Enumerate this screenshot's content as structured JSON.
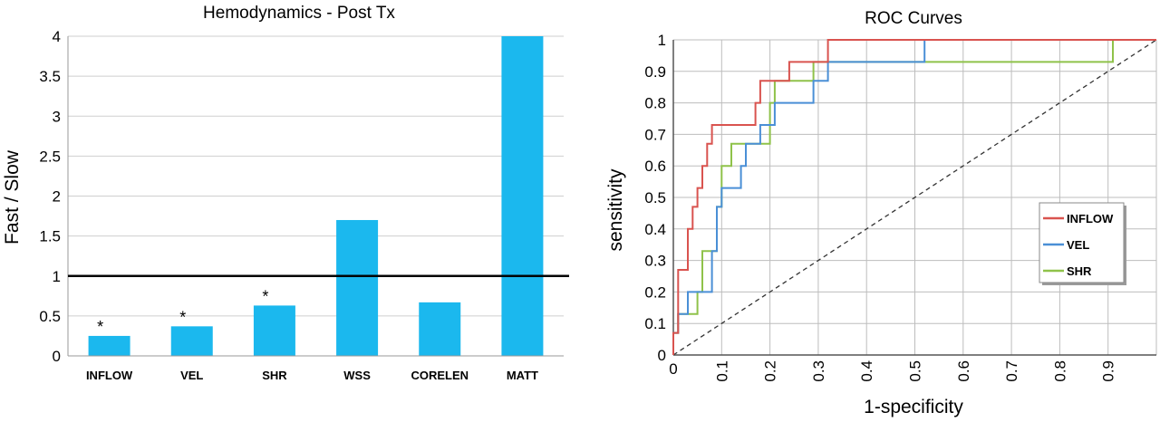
{
  "chart_data": [
    {
      "type": "bar",
      "title": "Hemodynamics - Post Tx",
      "ylabel": "Fast / Slow",
      "xlabel": "",
      "categories": [
        "INFLOW",
        "VEL",
        "SHR",
        "WSS",
        "CORELEN",
        "MATT"
      ],
      "values": [
        0.25,
        0.37,
        0.63,
        1.7,
        0.67,
        4.0
      ],
      "significance": [
        "*",
        "*",
        "*",
        "",
        "",
        ""
      ],
      "yticks": [
        "0",
        "0.5",
        "1",
        "1.5",
        "2",
        "2.5",
        "3",
        "3.5",
        "4"
      ],
      "ylim": [
        0,
        4
      ],
      "reference_line": 1,
      "bar_color": "#1bb8ee",
      "grid": "horizontal"
    },
    {
      "type": "line",
      "title": "ROC Curves",
      "xlabel": "1-specificity",
      "ylabel": "sensitivity",
      "xlim": [
        0,
        1
      ],
      "ylim": [
        0,
        1
      ],
      "xticks": [
        "0",
        "0.1",
        "0.2",
        "0.3",
        "0.4",
        "0.5",
        "0.6",
        "0.7",
        "0.8",
        "0.9"
      ],
      "yticks": [
        "0",
        "0.1",
        "0.2",
        "0.3",
        "0.4",
        "0.5",
        "0.6",
        "0.7",
        "0.8",
        "0.9",
        "1"
      ],
      "legend_position": "right-middle",
      "grid": "both",
      "diagonal_reference": true,
      "series": [
        {
          "name": "INFLOW",
          "color": "#d9534f",
          "points": [
            [
              0,
              0
            ],
            [
              0,
              0.07
            ],
            [
              0.01,
              0.07
            ],
            [
              0.01,
              0.13
            ],
            [
              0.01,
              0.13
            ],
            [
              0.01,
              0.2
            ],
            [
              0.01,
              0.27
            ],
            [
              0.03,
              0.27
            ],
            [
              0.03,
              0.33
            ],
            [
              0.03,
              0.4
            ],
            [
              0.04,
              0.4
            ],
            [
              0.04,
              0.47
            ],
            [
              0.05,
              0.47
            ],
            [
              0.05,
              0.53
            ],
            [
              0.06,
              0.53
            ],
            [
              0.06,
              0.6
            ],
            [
              0.07,
              0.6
            ],
            [
              0.07,
              0.67
            ],
            [
              0.08,
              0.67
            ],
            [
              0.08,
              0.73
            ],
            [
              0.17,
              0.73
            ],
            [
              0.17,
              0.8
            ],
            [
              0.18,
              0.8
            ],
            [
              0.18,
              0.87
            ],
            [
              0.24,
              0.87
            ],
            [
              0.24,
              0.93
            ],
            [
              0.32,
              0.93
            ],
            [
              0.32,
              1.0
            ],
            [
              1.0,
              1.0
            ]
          ]
        },
        {
          "name": "VEL",
          "color": "#4a8fd6",
          "points": [
            [
              0,
              0
            ],
            [
              0,
              0.07
            ],
            [
              0.01,
              0.07
            ],
            [
              0.01,
              0.13
            ],
            [
              0.03,
              0.13
            ],
            [
              0.03,
              0.2
            ],
            [
              0.05,
              0.2
            ],
            [
              0.05,
              0.2
            ],
            [
              0.08,
              0.2
            ],
            [
              0.08,
              0.33
            ],
            [
              0.09,
              0.33
            ],
            [
              0.09,
              0.47
            ],
            [
              0.1,
              0.47
            ],
            [
              0.1,
              0.53
            ],
            [
              0.14,
              0.53
            ],
            [
              0.14,
              0.6
            ],
            [
              0.15,
              0.6
            ],
            [
              0.15,
              0.67
            ],
            [
              0.18,
              0.67
            ],
            [
              0.18,
              0.73
            ],
            [
              0.21,
              0.73
            ],
            [
              0.21,
              0.8
            ],
            [
              0.29,
              0.8
            ],
            [
              0.29,
              0.87
            ],
            [
              0.32,
              0.87
            ],
            [
              0.32,
              0.93
            ],
            [
              0.52,
              0.93
            ],
            [
              0.52,
              1.0
            ],
            [
              1.0,
              1.0
            ]
          ]
        },
        {
          "name": "SHR",
          "color": "#8fc24a",
          "points": [
            [
              0,
              0
            ],
            [
              0,
              0.07
            ],
            [
              0.01,
              0.07
            ],
            [
              0.01,
              0.13
            ],
            [
              0.05,
              0.13
            ],
            [
              0.05,
              0.2
            ],
            [
              0.06,
              0.2
            ],
            [
              0.06,
              0.27
            ],
            [
              0.06,
              0.33
            ],
            [
              0.09,
              0.33
            ],
            [
              0.09,
              0.47
            ],
            [
              0.1,
              0.47
            ],
            [
              0.1,
              0.6
            ],
            [
              0.12,
              0.6
            ],
            [
              0.12,
              0.67
            ],
            [
              0.2,
              0.67
            ],
            [
              0.2,
              0.73
            ],
            [
              0.2,
              0.8
            ],
            [
              0.21,
              0.8
            ],
            [
              0.21,
              0.87
            ],
            [
              0.29,
              0.87
            ],
            [
              0.29,
              0.93
            ],
            [
              0.91,
              0.93
            ],
            [
              0.91,
              1.0
            ],
            [
              1.0,
              1.0
            ]
          ]
        }
      ]
    }
  ]
}
